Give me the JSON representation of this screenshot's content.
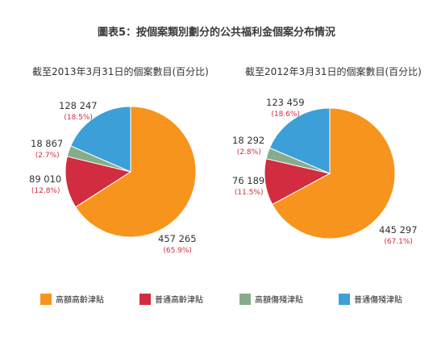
{
  "title": "圖表5：按個案類別劃分的公共福利金個案分布情況",
  "legend": [
    {
      "label": "高額高齡津貼",
      "color": "#f7941d"
    },
    {
      "label": "普通高齡津貼",
      "color": "#d12c3f"
    },
    {
      "label": "高額傷殘津貼",
      "color": "#86ac8c"
    },
    {
      "label": "普通傷殘津貼",
      "color": "#3c9fd8"
    }
  ],
  "chart_data": [
    {
      "type": "pie",
      "title": "截至2013年3月31日的個案數目(百分比)",
      "categories": [
        "高額高齡津貼",
        "普通高齡津貼",
        "高額傷殘津貼",
        "普通傷殘津貼"
      ],
      "values": [
        457265,
        89010,
        18867,
        128247
      ],
      "value_labels": [
        "457 265",
        "89 010",
        "18 867",
        "128 247"
      ],
      "percent_labels": [
        "(65.9%)",
        "(12.8%)",
        "(2.7%)",
        "(18.5%)"
      ],
      "colors": [
        "#f7941d",
        "#d12c3f",
        "#86ac8c",
        "#3c9fd8"
      ]
    },
    {
      "type": "pie",
      "title": "截至2012年3月31日的個案數目(百分比)",
      "categories": [
        "高額高齡津貼",
        "普通高齡津貼",
        "高額傷殘津貼",
        "普通傷殘津貼"
      ],
      "values": [
        445297,
        76189,
        18292,
        123459
      ],
      "value_labels": [
        "445 297",
        "76 189",
        "18 292",
        "123 459"
      ],
      "percent_labels": [
        "(67.1%)",
        "(11.5%)",
        "(2.8%)",
        "(18.6%)"
      ],
      "colors": [
        "#f7941d",
        "#d12c3f",
        "#86ac8c",
        "#3c9fd8"
      ]
    }
  ]
}
